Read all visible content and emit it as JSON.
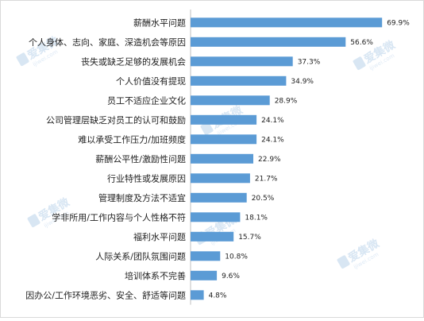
{
  "chart_data": {
    "type": "bar",
    "orientation": "horizontal",
    "title": "",
    "xlabel": "",
    "ylabel": "",
    "xlim": [
      0,
      75
    ],
    "grid": false,
    "legend": "none",
    "bar_color": "#5B9BD5",
    "value_suffix": "%",
    "categories": [
      "薪酬水平问题",
      "个人身体、志向、家庭、深造机会等原因",
      "丧失或缺乏足够的发展机会",
      "个人价值没有提现",
      "员工不适应企业文化",
      "公司管理层缺乏对员工的认可和鼓励",
      "难以承受工作压力/加班频度",
      "薪酬公平性/激励性问题",
      "行业特性或发展原因",
      "管理制度及方法不适宜",
      "学非所用/工作内容与个人性格不符",
      "福利水平问题",
      "人际关系/团队氛围问题",
      "培训体系不完善",
      "因办公/工作环境恶劣、安全、舒适等问题"
    ],
    "values": [
      69.9,
      56.6,
      37.3,
      34.9,
      28.9,
      24.1,
      24.1,
      22.9,
      21.7,
      20.5,
      18.1,
      15.7,
      10.8,
      9.6,
      4.8
    ],
    "data_labels": [
      "69.9%",
      "56.6%",
      "37.3%",
      "34.9%",
      "28.9%",
      "24.1%",
      "24.1%",
      "22.9%",
      "21.7%",
      "20.5%",
      "18.1%",
      "15.7%",
      "10.8%",
      "9.6%",
      "4.8%"
    ]
  },
  "watermark": {
    "text": "爱集微",
    "subtext": "ijiwei.com",
    "color": "#b9d2ea"
  }
}
